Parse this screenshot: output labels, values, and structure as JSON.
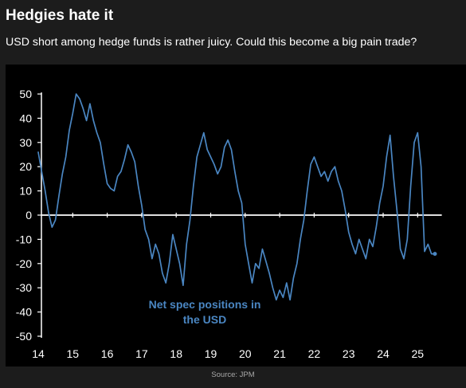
{
  "header": {
    "title": "Hedgies hate it",
    "subtitle": "USD short among hedge funds is rather juicy. Could this become a big pain trade?"
  },
  "footer": {
    "source": "Source: JPM"
  },
  "colors": {
    "page_background": "#1c1c1c",
    "chart_background": "#000000",
    "series_line": "#4a86c2",
    "axis": "#ffffff",
    "annotation": "#4a86c2"
  },
  "chart_data": {
    "type": "line",
    "title": "",
    "xlabel": "",
    "ylabel": "",
    "xlim": [
      2014,
      2025.7
    ],
    "ylim": [
      -50,
      50
    ],
    "grid": false,
    "legend": "none",
    "x_tick_labels": [
      "14",
      "15",
      "16",
      "17",
      "18",
      "19",
      "20",
      "21",
      "22",
      "23",
      "24",
      "25"
    ],
    "x_tick_values": [
      2014,
      2015,
      2016,
      2017,
      2018,
      2019,
      2020,
      2021,
      2022,
      2023,
      2024,
      2025
    ],
    "y_tick_labels": [
      "50",
      "40",
      "30",
      "20",
      "10",
      "0",
      "-10",
      "-20",
      "-30",
      "-40",
      "-50"
    ],
    "y_tick_values": [
      50,
      40,
      30,
      20,
      10,
      0,
      -10,
      -20,
      -30,
      -40,
      -50
    ],
    "annotations": [
      "Net spec positions in",
      "the USD"
    ],
    "series": [
      {
        "name": "",
        "x": [
          2014.0,
          2014.1,
          2014.2,
          2014.3,
          2014.4,
          2014.5,
          2014.6,
          2014.7,
          2014.8,
          2014.9,
          2015.0,
          2015.1,
          2015.2,
          2015.3,
          2015.4,
          2015.5,
          2015.6,
          2015.7,
          2015.8,
          2015.9,
          2016.0,
          2016.1,
          2016.2,
          2016.3,
          2016.4,
          2016.5,
          2016.6,
          2016.7,
          2016.8,
          2016.9,
          2017.0,
          2017.1,
          2017.2,
          2017.3,
          2017.4,
          2017.5,
          2017.6,
          2017.7,
          2017.8,
          2017.9,
          2018.0,
          2018.1,
          2018.2,
          2018.3,
          2018.4,
          2018.5,
          2018.6,
          2018.7,
          2018.8,
          2018.9,
          2019.0,
          2019.1,
          2019.2,
          2019.3,
          2019.4,
          2019.5,
          2019.6,
          2019.7,
          2019.8,
          2019.9,
          2020.0,
          2020.1,
          2020.2,
          2020.3,
          2020.4,
          2020.5,
          2020.6,
          2020.7,
          2020.8,
          2020.9,
          2021.0,
          2021.1,
          2021.2,
          2021.3,
          2021.4,
          2021.5,
          2021.6,
          2021.7,
          2021.8,
          2021.9,
          2022.0,
          2022.1,
          2022.2,
          2022.3,
          2022.4,
          2022.5,
          2022.6,
          2022.7,
          2022.8,
          2022.9,
          2023.0,
          2023.1,
          2023.2,
          2023.3,
          2023.4,
          2023.5,
          2023.6,
          2023.7,
          2023.8,
          2023.9,
          2024.0,
          2024.1,
          2024.2,
          2024.3,
          2024.4,
          2024.5,
          2024.6,
          2024.7,
          2024.8,
          2024.9,
          2025.0,
          2025.1,
          2025.2,
          2025.3,
          2025.4,
          2025.5
        ],
        "values": [
          26,
          18,
          10,
          1,
          -5,
          -2,
          8,
          17,
          24,
          35,
          42,
          50,
          48,
          44,
          39,
          46,
          39,
          34,
          30,
          21,
          13,
          11,
          10,
          16,
          18,
          23,
          29,
          26,
          22,
          12,
          4,
          -6,
          -10,
          -18,
          -12,
          -16,
          -24,
          -28,
          -20,
          -8,
          -14,
          -20,
          -29,
          -12,
          -2,
          12,
          24,
          29,
          34,
          27,
          24,
          21,
          17,
          20,
          28,
          31,
          27,
          18,
          10,
          5,
          -12,
          -20,
          -28,
          -20,
          -22,
          -14,
          -19,
          -24,
          -30,
          -35,
          -31,
          -34,
          -28,
          -35,
          -26,
          -20,
          -10,
          -2,
          10,
          21,
          24,
          20,
          16,
          18,
          14,
          18,
          20,
          14,
          10,
          2,
          -7,
          -12,
          -16,
          -10,
          -14,
          -18,
          -10,
          -13,
          -5,
          5,
          12,
          24,
          33,
          16,
          2,
          -14,
          -18,
          -10,
          12,
          30,
          34,
          20,
          -15,
          -12,
          -16,
          -16
        ]
      }
    ]
  }
}
